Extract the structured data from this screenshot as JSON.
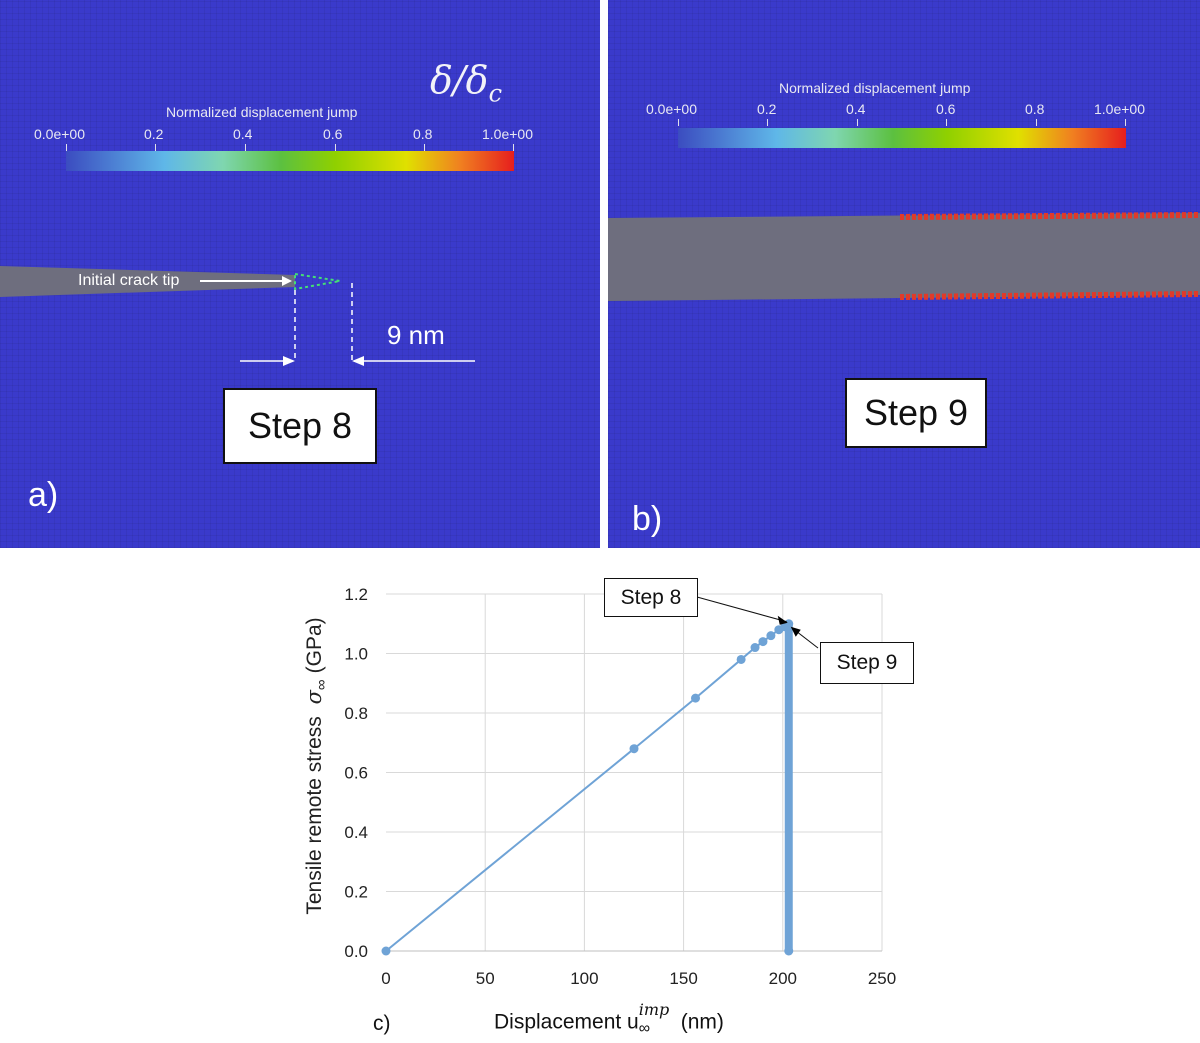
{
  "panel_a": {
    "letter": "a)",
    "delta_label": "δ/δ",
    "delta_sub": "c",
    "colorbar_title": "Normalized displacement jump",
    "colorbar_ticks": [
      "0.0e+00",
      "0.2",
      "0.4",
      "0.6",
      "0.8",
      "1.0e+00"
    ],
    "crack_label": "Initial crack tip",
    "distance_label": "9 nm",
    "step_label": "Step 8"
  },
  "panel_b": {
    "letter": "b)",
    "colorbar_title": "Normalized displacement jump",
    "colorbar_ticks": [
      "0.0e+00",
      "0.2",
      "0.4",
      "0.6",
      "0.8",
      "1.0e+00"
    ],
    "step_label": "Step 9"
  },
  "panel_c": {
    "letter": "c)",
    "callout_step8": "Step 8",
    "callout_step9": "Step 9"
  },
  "colors": {
    "series": "#6fa3d6",
    "field": "#3a3acb",
    "crack": "#6e6e7e",
    "damage": "#e03a2a"
  },
  "chart_data": {
    "type": "line",
    "xlabel": "Displacement u",
    "xlabel_sup": "imp",
    "xlabel_sub": "∞",
    "xlabel_unit": "(nm)",
    "ylabel": "Tensile remote stress",
    "ylabel_symbol": "σ",
    "ylabel_sub": "∞",
    "ylabel_unit": "(GPa)",
    "xlim": [
      0,
      250
    ],
    "ylim": [
      0,
      1.2
    ],
    "xticks": [
      0,
      50,
      100,
      150,
      200,
      250
    ],
    "yticks": [
      0.0,
      0.2,
      0.4,
      0.6,
      0.8,
      1.0,
      1.2
    ],
    "ytick_labels": [
      "0.0",
      "0.2",
      "0.4",
      "0.6",
      "0.8",
      "1.0",
      "1.2"
    ],
    "grid": true,
    "series": [
      {
        "x": [
          0,
          125,
          156,
          179,
          186,
          190,
          194,
          198,
          201,
          203
        ],
        "y": [
          0,
          0.68,
          0.85,
          0.98,
          1.02,
          1.04,
          1.06,
          1.08,
          1.09,
          1.1
        ]
      }
    ],
    "drop": {
      "x": 203,
      "y_from": 1.1,
      "y_to": 0.0
    }
  }
}
